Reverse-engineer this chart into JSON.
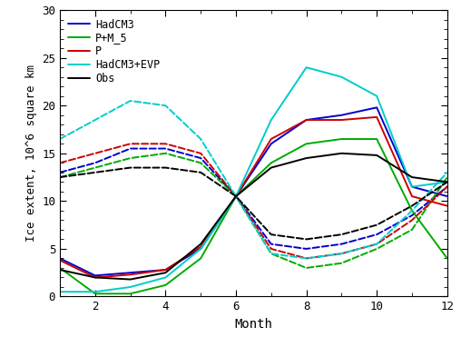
{
  "title": "",
  "xlabel": "Month",
  "ylabel": "Ice extent, 10^6 square km",
  "xlim": [
    1,
    12
  ],
  "ylim": [
    0,
    30
  ],
  "xticks": [
    2,
    4,
    6,
    8,
    10,
    12
  ],
  "yticks": [
    0,
    5,
    10,
    15,
    20,
    25,
    30
  ],
  "series": [
    {
      "label": "HadCM3",
      "color": "#0000cc",
      "solid": [
        4.0,
        2.2,
        2.5,
        2.8,
        5.0,
        10.5,
        16.0,
        18.5,
        19.0,
        19.8,
        11.5,
        10.5
      ],
      "dashed": [
        13.0,
        14.0,
        15.5,
        15.5,
        14.5,
        10.5,
        5.5,
        5.0,
        5.5,
        6.5,
        8.5,
        11.5
      ]
    },
    {
      "label": "P+M_5",
      "color": "#00aa00",
      "solid": [
        3.0,
        0.3,
        0.3,
        1.2,
        4.0,
        10.5,
        14.0,
        16.0,
        16.5,
        16.5,
        9.0,
        4.0
      ],
      "dashed": [
        12.5,
        13.5,
        14.5,
        15.0,
        14.0,
        10.5,
        4.5,
        3.0,
        3.5,
        5.0,
        7.0,
        12.5
      ]
    },
    {
      "label": "P",
      "color": "#cc0000",
      "solid": [
        3.8,
        2.0,
        2.3,
        2.8,
        5.2,
        10.5,
        16.5,
        18.5,
        18.5,
        18.8,
        10.5,
        9.5
      ],
      "dashed": [
        14.0,
        15.0,
        16.0,
        16.0,
        15.0,
        10.5,
        5.0,
        4.0,
        4.5,
        5.5,
        8.0,
        11.5
      ]
    },
    {
      "label": "HadCM3+EVP",
      "color": "#00cccc",
      "solid": [
        0.5,
        0.5,
        1.0,
        2.0,
        5.0,
        10.5,
        18.5,
        24.0,
        23.0,
        21.0,
        11.5,
        12.0
      ],
      "dashed": [
        16.5,
        18.5,
        20.5,
        20.0,
        16.5,
        10.5,
        4.5,
        4.0,
        4.5,
        5.5,
        9.0,
        13.0
      ]
    },
    {
      "label": "Obs",
      "color": "#000000",
      "solid": [
        2.8,
        2.0,
        1.8,
        2.5,
        5.5,
        10.5,
        13.5,
        14.5,
        15.0,
        14.8,
        12.5,
        12.0
      ],
      "dashed": [
        12.5,
        13.0,
        13.5,
        13.5,
        13.0,
        10.5,
        6.5,
        6.0,
        6.5,
        7.5,
        9.5,
        12.0
      ]
    }
  ]
}
